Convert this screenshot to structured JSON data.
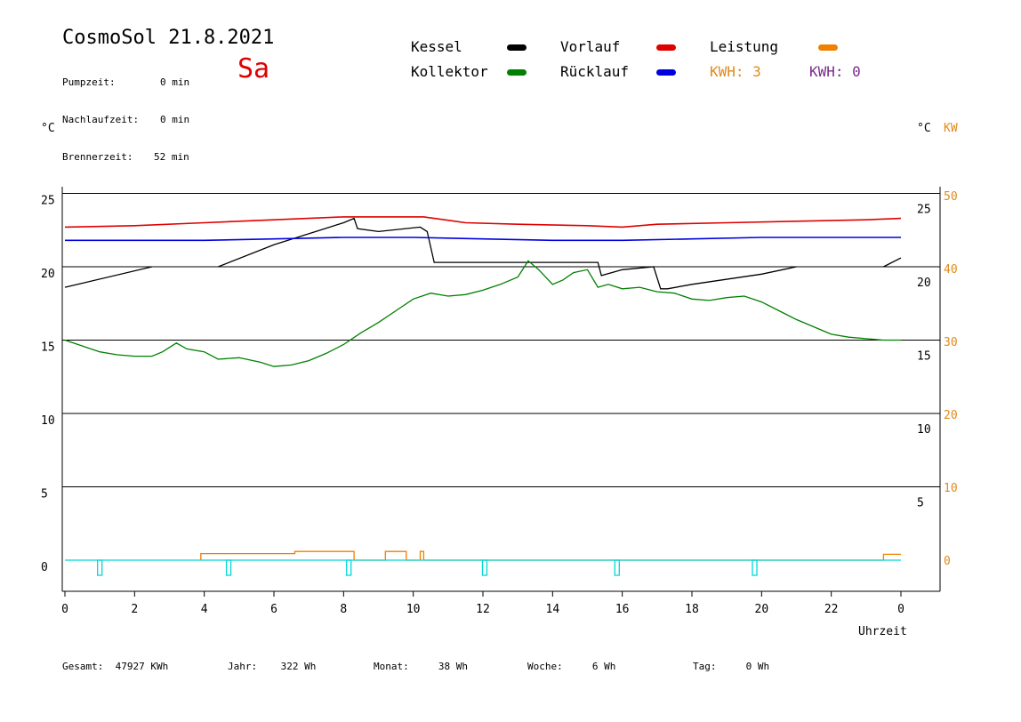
{
  "header": {
    "title": "CosmoSol 21.8.2021",
    "weekday": "Sa",
    "stats": [
      {
        "label": "Pumpzeit:",
        "value": "0 min"
      },
      {
        "label": "Nachlaufzeit:",
        "value": "0 min"
      },
      {
        "label": "Brennerzeit:",
        "value": "52 min"
      }
    ]
  },
  "legend": [
    {
      "label": "Kessel",
      "color": "#000000"
    },
    {
      "label": "Kollektor",
      "color": "#008000"
    },
    {
      "label": "Vorlauf",
      "color": "#e00000"
    },
    {
      "label": "Rücklauf",
      "color": "#0000e0"
    },
    {
      "label": "Leistung",
      "color": "#f08000"
    }
  ],
  "kwh": [
    {
      "text": "KWH: 3",
      "color": "#e08a1a"
    },
    {
      "text": "KWH: 0",
      "color": "#7a2a8a"
    }
  ],
  "units": {
    "left": "°C",
    "right_c": "°C",
    "right_kw": "KW"
  },
  "footer": [
    {
      "label": "Gesamt:",
      "value": "47927 KWh"
    },
    {
      "label": "Jahr:",
      "value": "322 Wh"
    },
    {
      "label": "Monat:",
      "value": "38 Wh"
    },
    {
      "label": "Woche:",
      "value": "6 Wh"
    },
    {
      "label": "Tag:",
      "value": "0 Wh"
    }
  ],
  "chart_data": {
    "type": "line",
    "xlabel": "Uhrzeit",
    "x_ticks": [
      "0",
      "2",
      "4",
      "6",
      "8",
      "10",
      "12",
      "14",
      "16",
      "18",
      "20",
      "22",
      "0"
    ],
    "xlim": [
      0,
      24
    ],
    "left_ticks": [
      "25",
      "20",
      "15",
      "10",
      "5",
      "0"
    ],
    "ylim_left": [
      -2,
      25
    ],
    "right_c_ticks": [
      "25",
      "20",
      "15",
      "10",
      "5"
    ],
    "right_kw_ticks": [
      "50",
      "40",
      "30",
      "20",
      "10",
      "0"
    ],
    "grid": true,
    "series": [
      {
        "name": "Kessel",
        "color": "#000000",
        "unit": "C",
        "x": [
          0,
          2.5,
          2.5,
          4.4,
          6,
          8,
          8.3,
          8.4,
          9,
          10.2,
          10.4,
          10.6,
          11,
          15.3,
          15.4,
          16,
          16.9,
          17.1,
          17.3,
          18,
          20,
          21,
          22,
          23.5,
          24
        ],
        "y": [
          18.6,
          20,
          null,
          20,
          21.5,
          23,
          23.3,
          22.6,
          22.4,
          22.7,
          22.4,
          20.3,
          20.3,
          20.3,
          19.4,
          19.8,
          20,
          18.5,
          18.5,
          18.8,
          19.5,
          20,
          null,
          20,
          20.6
        ]
      },
      {
        "name": "Kollektor",
        "color": "#008000",
        "unit": "C",
        "x": [
          0,
          0.5,
          1,
          1.5,
          2,
          2.5,
          2.8,
          3.2,
          3.5,
          4,
          4.4,
          5,
          5.6,
          6,
          6.5,
          7,
          7.5,
          8,
          8.5,
          9,
          9.5,
          10,
          10.5,
          11,
          11.5,
          12,
          12.5,
          13,
          13.3,
          13.6,
          14,
          14.3,
          14.6,
          15,
          15.3,
          15.6,
          16,
          16.5,
          17,
          17.5,
          18,
          18.5,
          19,
          19.5,
          20,
          20.5,
          21,
          21.5,
          22,
          22.5,
          23,
          23.5,
          24
        ],
        "y": [
          15,
          14.6,
          14.2,
          14,
          13.9,
          13.9,
          14.2,
          14.8,
          14.4,
          14.2,
          13.7,
          13.8,
          13.5,
          13.2,
          13.3,
          13.6,
          14.1,
          14.7,
          15.5,
          16.2,
          17,
          17.8,
          18.2,
          18,
          18.1,
          18.4,
          18.8,
          19.3,
          20.4,
          19.8,
          18.8,
          19.1,
          19.6,
          19.8,
          18.6,
          18.8,
          18.5,
          18.6,
          18.3,
          18.2,
          17.8,
          17.7,
          17.9,
          18,
          17.6,
          17,
          16.4,
          15.9,
          15.4,
          15.2,
          15.1,
          15,
          15
        ]
      },
      {
        "name": "Vorlauf",
        "color": "#e00000",
        "unit": "C",
        "x": [
          0,
          2,
          4,
          6,
          8,
          10.3,
          11.5,
          13,
          15,
          16,
          17,
          19,
          21,
          23,
          24
        ],
        "y": [
          22.7,
          22.8,
          23,
          23.2,
          23.4,
          23.4,
          23,
          22.9,
          22.8,
          22.7,
          22.9,
          23,
          23.1,
          23.2,
          23.3
        ]
      },
      {
        "name": "Rücklauf",
        "color": "#0000e0",
        "unit": "C",
        "x": [
          0,
          2,
          4,
          6,
          8,
          10,
          12,
          14,
          16,
          18,
          20,
          22,
          24
        ],
        "y": [
          21.8,
          21.8,
          21.8,
          21.9,
          22,
          22,
          21.9,
          21.8,
          21.8,
          21.9,
          22,
          22,
          22
        ]
      },
      {
        "name": "Leistung",
        "color": "#f08000",
        "unit": "KW",
        "x": [
          3.9,
          3.9,
          6.6,
          6.6,
          8.3,
          8.3,
          9.2,
          9.2,
          9.8,
          9.8,
          10.2,
          10.2,
          10.3,
          10.3,
          23.5,
          23.5,
          24
        ],
        "y": [
          0,
          0.9,
          0.9,
          1.2,
          1.2,
          0,
          0,
          1.2,
          1.2,
          0,
          0,
          1.2,
          1.2,
          0,
          0,
          0.8,
          0.8
        ]
      },
      {
        "name": "Pumpe",
        "color": "#00d8d8",
        "unit": "C",
        "x": [
          0,
          24
        ],
        "y": [
          0,
          0
        ]
      }
    ],
    "pump_pulses": [
      1.0,
      4.7,
      8.15,
      12.05,
      15.85,
      19.8
    ]
  }
}
